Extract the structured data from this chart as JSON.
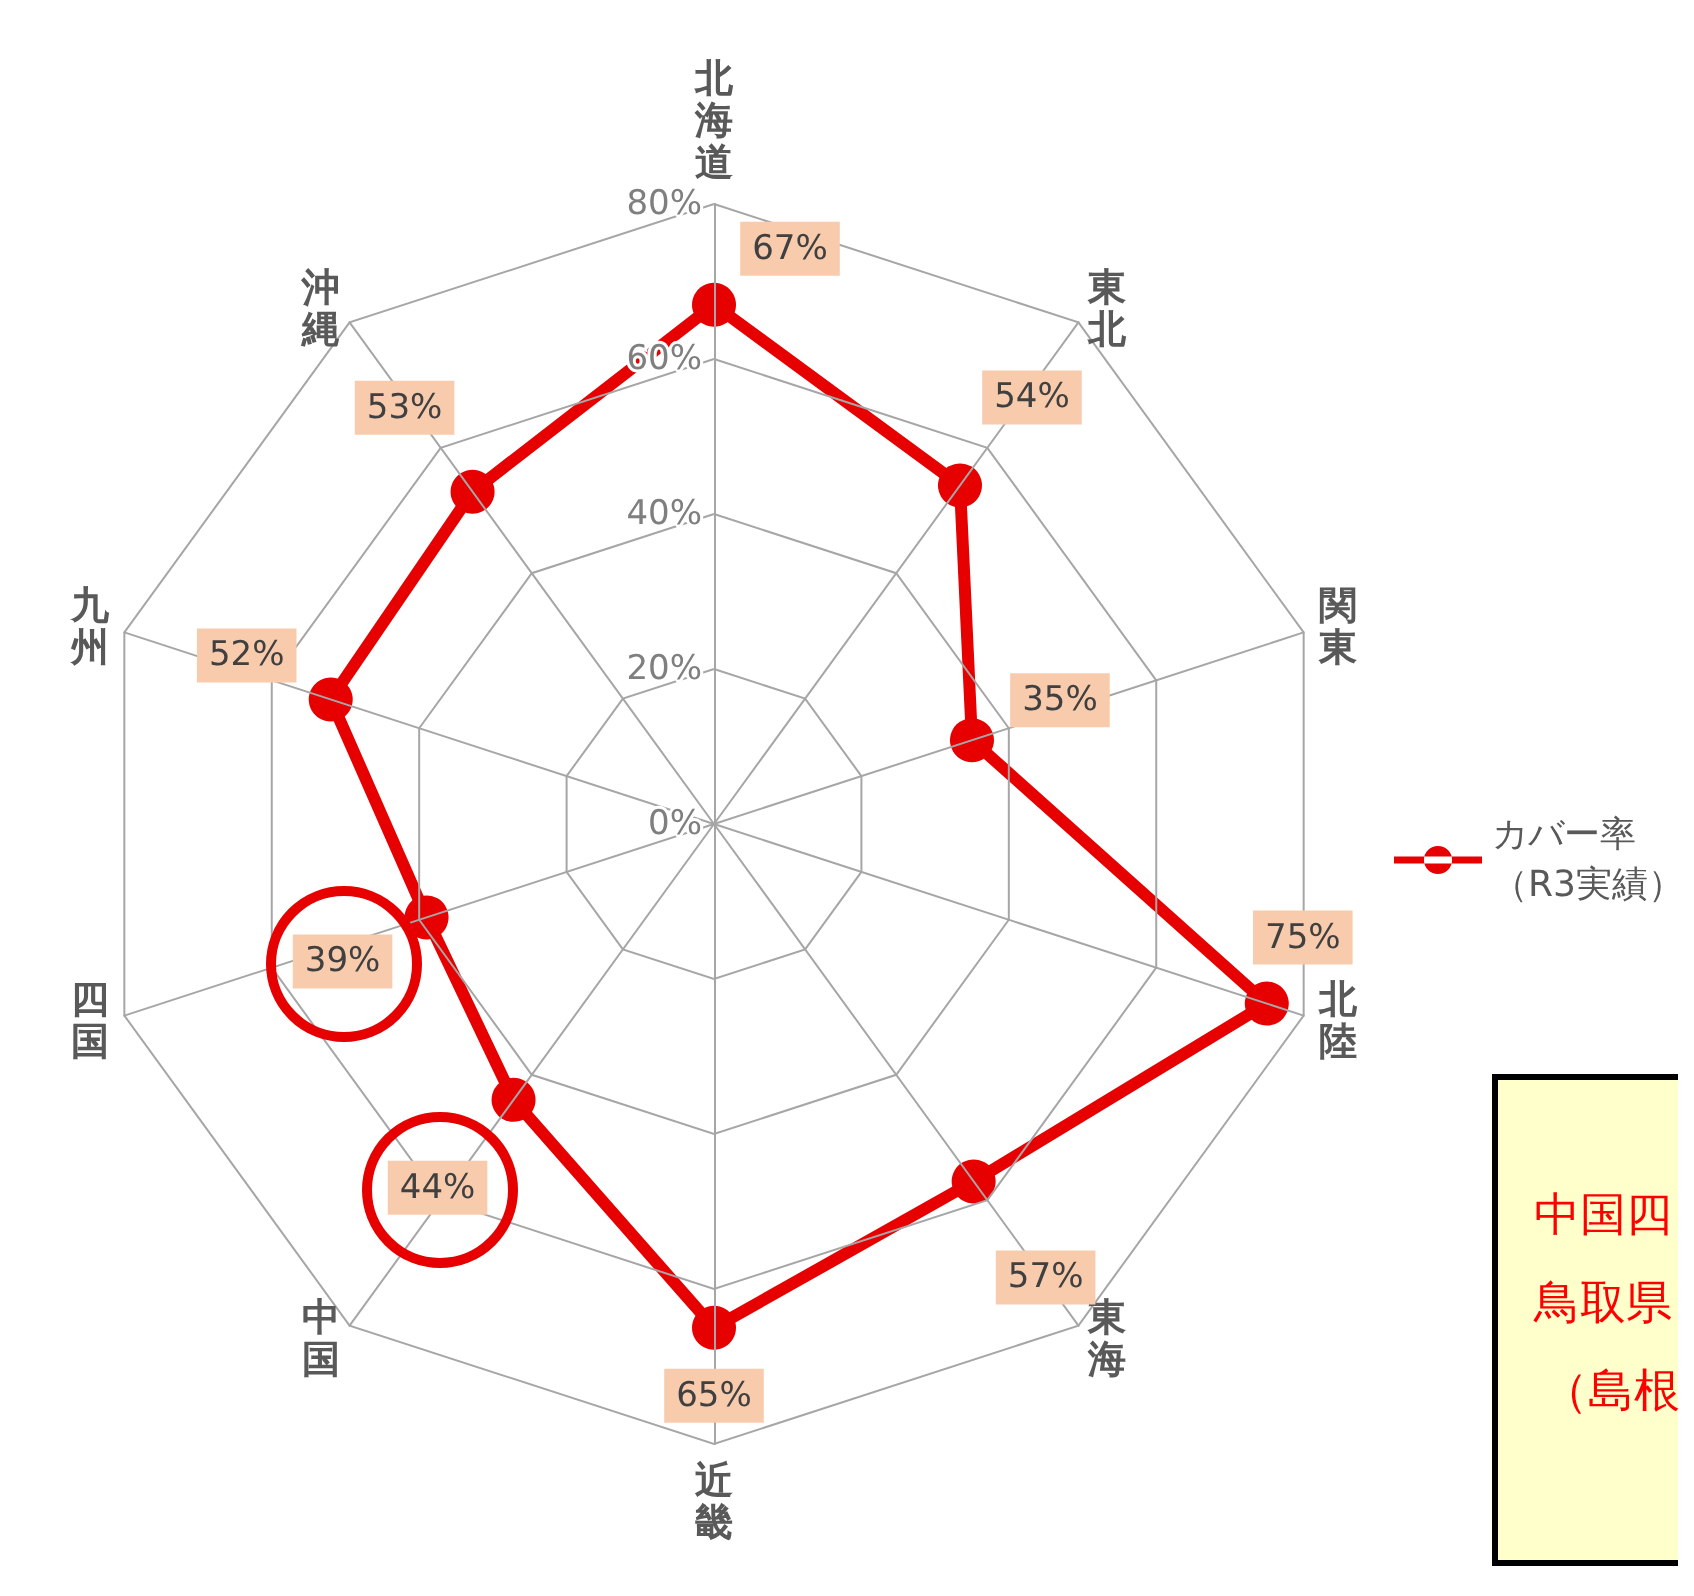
{
  "chart_data": {
    "type": "radar",
    "categories": [
      "北海道",
      "東北",
      "関東",
      "北陸",
      "東海",
      "近畿",
      "中国",
      "四国",
      "九州",
      "沖縄"
    ],
    "series": [
      {
        "name": "カバー率（R3実績）",
        "color": "#e60000",
        "values": [
          67,
          54,
          35,
          75,
          57,
          65,
          44,
          39,
          52,
          53
        ],
        "value_labels": [
          "67%",
          "54%",
          "35%",
          "75%",
          "57%",
          "65%",
          "44%",
          "39%",
          "52%",
          "53%"
        ]
      }
    ],
    "ylim": [
      0,
      80
    ],
    "yticks": [
      {
        "value": 0,
        "label": "0%"
      },
      {
        "value": 20,
        "label": "20%"
      },
      {
        "value": 40,
        "label": "40%"
      },
      {
        "value": 60,
        "label": "60%"
      },
      {
        "value": 80,
        "label": "80%"
      }
    ],
    "grid": true,
    "legend": "right",
    "marker": "circle",
    "line_style": "solid",
    "annotations": [
      "中国四",
      "鳥取県",
      "（島根"
    ]
  }
}
